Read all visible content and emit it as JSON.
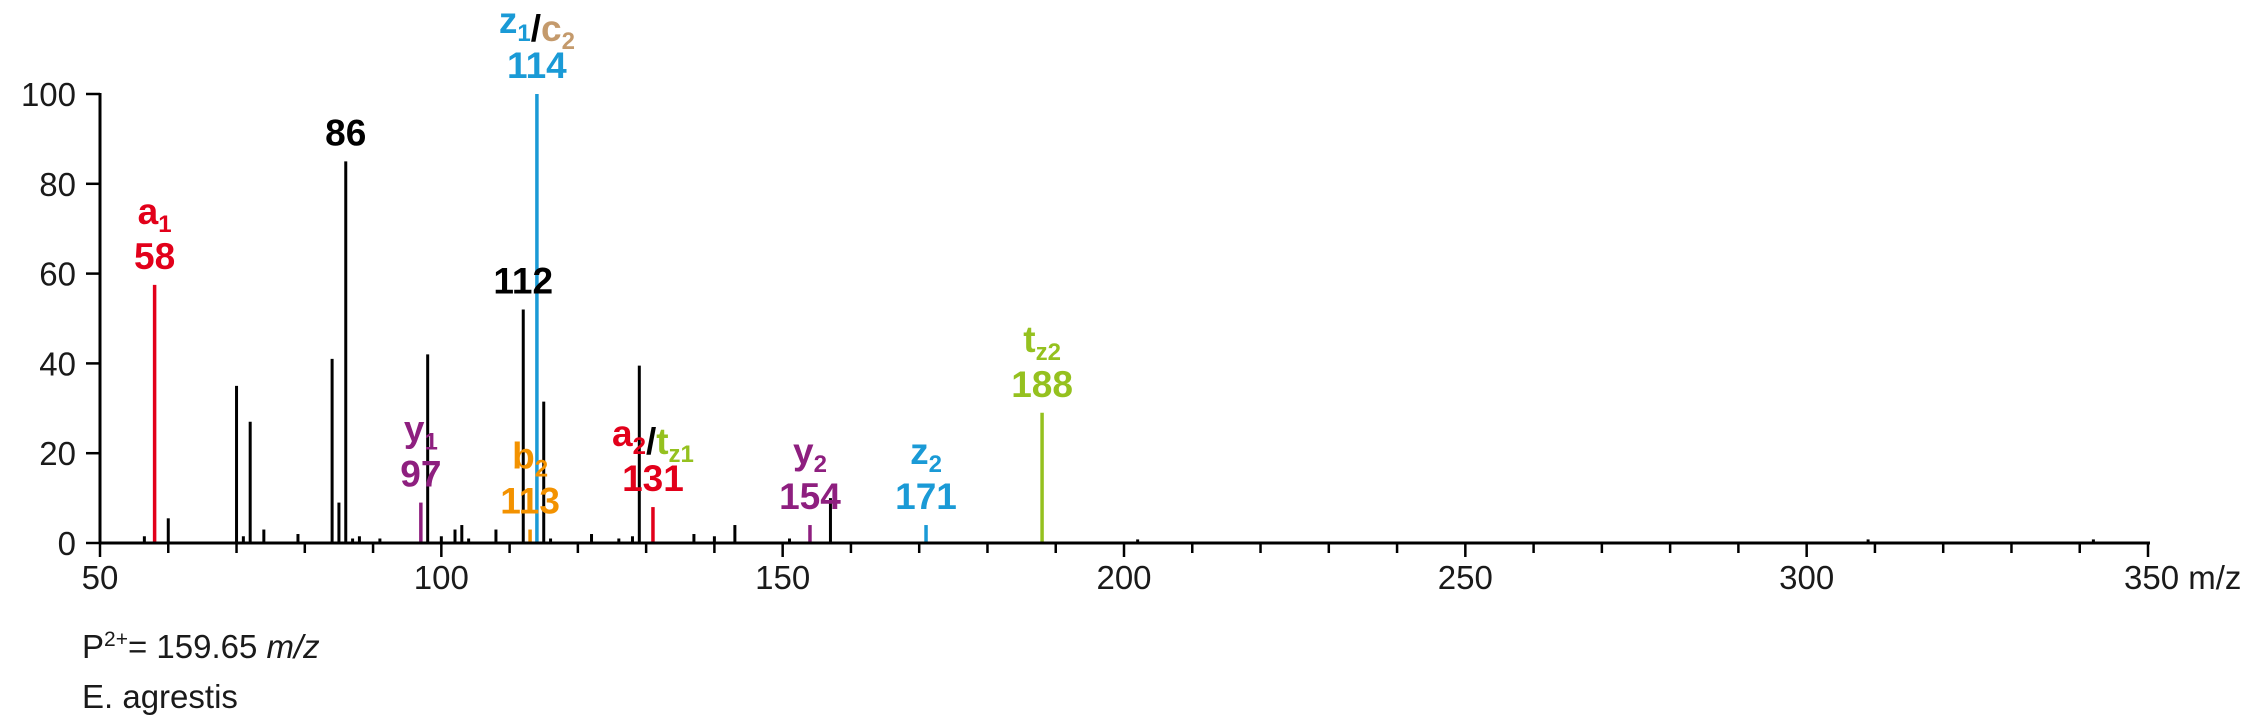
{
  "chart_data": {
    "type": "bar",
    "xlim": [
      50,
      350
    ],
    "ylim": [
      0,
      100
    ],
    "x_major_ticks": [
      50,
      100,
      150,
      200,
      250,
      300,
      350
    ],
    "x_tick_labels": [
      "50",
      "100",
      "150",
      "200",
      "250",
      "300",
      "350 m/z"
    ],
    "y_ticks": [
      0,
      20,
      40,
      60,
      80,
      100
    ],
    "y_tick_labels": [
      "0",
      "20",
      "40",
      "60",
      "80",
      "100"
    ],
    "grid": false,
    "colors": {
      "black": "#000000",
      "red": "#e2001a",
      "blue": "#1a9ad6",
      "purple": "#8e1f7f",
      "orange": "#f39200",
      "green": "#95c11f",
      "tan": "#c49a6c"
    },
    "peaks": [
      {
        "x": 56.5,
        "y": 1.5,
        "color": "black"
      },
      {
        "x": 58,
        "y": 57.5,
        "color": "red"
      },
      {
        "x": 60,
        "y": 5.5,
        "color": "black"
      },
      {
        "x": 70,
        "y": 35,
        "color": "black"
      },
      {
        "x": 71,
        "y": 1.5,
        "color": "black"
      },
      {
        "x": 72,
        "y": 27,
        "color": "black"
      },
      {
        "x": 74,
        "y": 3,
        "color": "black"
      },
      {
        "x": 79,
        "y": 2,
        "color": "black"
      },
      {
        "x": 84,
        "y": 41,
        "color": "black"
      },
      {
        "x": 85,
        "y": 9,
        "color": "black"
      },
      {
        "x": 86,
        "y": 85,
        "color": "black"
      },
      {
        "x": 87,
        "y": 1,
        "color": "black"
      },
      {
        "x": 88,
        "y": 1.5,
        "color": "black"
      },
      {
        "x": 91,
        "y": 1,
        "color": "black"
      },
      {
        "x": 97,
        "y": 9,
        "color": "purple"
      },
      {
        "x": 98,
        "y": 42,
        "color": "black"
      },
      {
        "x": 100,
        "y": 1.5,
        "color": "black"
      },
      {
        "x": 102,
        "y": 3,
        "color": "black"
      },
      {
        "x": 103,
        "y": 4,
        "color": "black"
      },
      {
        "x": 104,
        "y": 1,
        "color": "black"
      },
      {
        "x": 108,
        "y": 3,
        "color": "black"
      },
      {
        "x": 112,
        "y": 52,
        "color": "black"
      },
      {
        "x": 113,
        "y": 3,
        "color": "orange"
      },
      {
        "x": 114,
        "y": 100,
        "color": "blue"
      },
      {
        "x": 115,
        "y": 31.5,
        "color": "black"
      },
      {
        "x": 116,
        "y": 1,
        "color": "black"
      },
      {
        "x": 122,
        "y": 2,
        "color": "black"
      },
      {
        "x": 126,
        "y": 1,
        "color": "black"
      },
      {
        "x": 128,
        "y": 1.5,
        "color": "black"
      },
      {
        "x": 129,
        "y": 39.5,
        "color": "black"
      },
      {
        "x": 131,
        "y": 8,
        "color": "red"
      },
      {
        "x": 137,
        "y": 2,
        "color": "black"
      },
      {
        "x": 140,
        "y": 1.5,
        "color": "black"
      },
      {
        "x": 143,
        "y": 4,
        "color": "black"
      },
      {
        "x": 151,
        "y": 1,
        "color": "black"
      },
      {
        "x": 154,
        "y": 4,
        "color": "purple"
      },
      {
        "x": 157,
        "y": 10,
        "color": "black"
      },
      {
        "x": 171,
        "y": 4,
        "color": "blue"
      },
      {
        "x": 188,
        "y": 29,
        "color": "green"
      },
      {
        "x": 202,
        "y": 0.8,
        "color": "black"
      },
      {
        "x": 309,
        "y": 0.8,
        "color": "black"
      },
      {
        "x": 342,
        "y": 0.8,
        "color": "black"
      }
    ],
    "annotations": [
      {
        "x": 58,
        "ion": [
          {
            "t": "a",
            "sub": "1",
            "color": "red"
          }
        ],
        "value": "58",
        "value_color": "red"
      },
      {
        "x": 86,
        "ion": [],
        "value": "86",
        "value_color": "black"
      },
      {
        "x": 97,
        "ion": [
          {
            "t": "y",
            "sub": "1",
            "color": "purple"
          }
        ],
        "value": "97",
        "value_color": "purple"
      },
      {
        "x": 112,
        "ion": [],
        "value": "112",
        "value_color": "black"
      },
      {
        "x": 113,
        "ion": [
          {
            "t": "b",
            "sub": "2",
            "color": "orange"
          }
        ],
        "value": "113",
        "value_color": "orange"
      },
      {
        "x": 114,
        "ion": [
          {
            "t": "z",
            "sub": "1",
            "color": "blue"
          },
          {
            "t": "/",
            "sub": "",
            "color": "black"
          },
          {
            "t": "c",
            "sub": "2",
            "color": "tan"
          }
        ],
        "value": "114",
        "value_color": "blue"
      },
      {
        "x": 131,
        "ion": [
          {
            "t": "a",
            "sub": "2",
            "color": "red"
          },
          {
            "t": "/",
            "sub": "",
            "color": "black"
          },
          {
            "t": "t",
            "sub": "z1",
            "color": "green"
          }
        ],
        "value": "131",
        "value_color": "red"
      },
      {
        "x": 154,
        "ion": [
          {
            "t": "y",
            "sub": "2",
            "color": "purple"
          }
        ],
        "value": "154",
        "value_color": "purple"
      },
      {
        "x": 171,
        "ion": [
          {
            "t": "z",
            "sub": "2",
            "color": "blue"
          }
        ],
        "value": "171",
        "value_color": "blue"
      },
      {
        "x": 188,
        "ion": [
          {
            "t": "t",
            "sub": "z2",
            "color": "green"
          }
        ],
        "value": "188",
        "value_color": "green"
      }
    ]
  },
  "footer": {
    "precursor_prefix": "P",
    "precursor_charge": "2+",
    "precursor_value": "= 159.65 ",
    "precursor_unit": "m/z",
    "species": "E. agrestis"
  }
}
